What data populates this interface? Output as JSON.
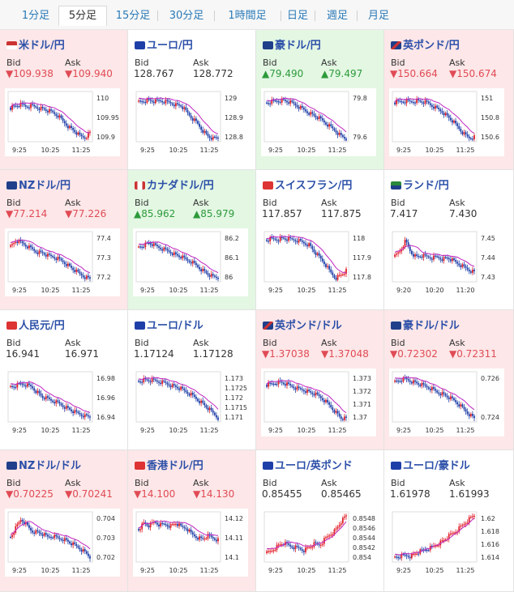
{
  "tabs": [
    {
      "label": "1分足",
      "active": false
    },
    {
      "label": "5分足",
      "active": true
    },
    {
      "label": "15分足",
      "active": false
    },
    {
      "label": "30分足",
      "active": false
    },
    {
      "label": "1時間足",
      "active": false
    },
    {
      "label": "日足",
      "active": false
    },
    {
      "label": "週足",
      "active": false
    },
    {
      "label": "月足",
      "active": false
    }
  ],
  "labels": {
    "bid": "Bid",
    "ask": "Ask"
  },
  "colors": {
    "down_bg": "#fde7e8",
    "up_bg": "#e3f7e3",
    "down_text": "#e04b55",
    "up_text": "#2d9a3b",
    "title": "#2b4fa8",
    "ma_line": "#c026c0",
    "bull": "#e0202a",
    "bear": "#1f3fa8"
  },
  "pairs": [
    {
      "name": "米ドル/円",
      "flag": "us-flag",
      "trend": "down",
      "bid": "▼109.938",
      "ask": "▼109.940",
      "chart_data": {
        "type": "candlestick",
        "xticks": [
          "9:25",
          "10:25",
          "11:25"
        ],
        "yticks": [
          "110",
          "109.95",
          "109.9"
        ],
        "shape": [
          0.68,
          0.72,
          0.74,
          0.7,
          0.72,
          0.69,
          0.66,
          0.62,
          0.58,
          0.52,
          0.4,
          0.3,
          0.22,
          0.12,
          0.08,
          0.18
        ]
      }
    },
    {
      "name": "ユーロ/円",
      "flag": "eu-flag",
      "trend": "none",
      "bid": "128.767",
      "ask": "128.772",
      "chart_data": {
        "type": "candlestick",
        "xticks": [
          "9:25",
          "10:25",
          "11:25"
        ],
        "yticks": [
          "129",
          "128.9",
          "128.8"
        ],
        "shape": [
          0.8,
          0.82,
          0.83,
          0.8,
          0.82,
          0.8,
          0.78,
          0.74,
          0.72,
          0.6,
          0.48,
          0.38,
          0.24,
          0.12,
          0.06,
          0.08
        ]
      }
    },
    {
      "name": "豪ドル/円",
      "flag": "au-flag",
      "trend": "up",
      "bid": "▲79.490",
      "ask": "▲79.497",
      "chart_data": {
        "type": "candlestick",
        "xticks": [
          "9:25",
          "10:25",
          "11:25"
        ],
        "yticks": [
          "79.8",
          "79.6"
        ],
        "shape": [
          0.78,
          0.8,
          0.82,
          0.83,
          0.8,
          0.76,
          0.7,
          0.64,
          0.58,
          0.52,
          0.46,
          0.38,
          0.3,
          0.22,
          0.12,
          0.06
        ]
      }
    },
    {
      "name": "英ポンド/円",
      "flag": "gb-flag",
      "trend": "down",
      "bid": "▼150.664",
      "ask": "▼150.674",
      "chart_data": {
        "type": "candlestick",
        "xticks": [
          "9:25",
          "10:25",
          "11:25"
        ],
        "yticks": [
          "151",
          "150.8",
          "150.6"
        ],
        "shape": [
          0.78,
          0.8,
          0.81,
          0.8,
          0.82,
          0.8,
          0.78,
          0.72,
          0.66,
          0.6,
          0.5,
          0.4,
          0.28,
          0.16,
          0.08,
          0.1
        ]
      }
    },
    {
      "name": "NZドル/円",
      "flag": "nz-flag",
      "trend": "down",
      "bid": "▼77.214",
      "ask": "▼77.226",
      "chart_data": {
        "type": "candlestick",
        "xticks": [
          "9:25",
          "10:25",
          "11:25"
        ],
        "yticks": [
          "77.4",
          "77.3",
          "77.2"
        ],
        "shape": [
          0.7,
          0.82,
          0.78,
          0.72,
          0.66,
          0.6,
          0.58,
          0.52,
          0.5,
          0.46,
          0.4,
          0.32,
          0.24,
          0.16,
          0.1,
          0.06
        ]
      }
    },
    {
      "name": "カナダドル/円",
      "flag": "ca-flag",
      "trend": "up",
      "bid": "▲85.962",
      "ask": "▲85.979",
      "chart_data": {
        "type": "candlestick",
        "xticks": [
          "9:25",
          "10:25",
          "11:25"
        ],
        "yticks": [
          "86.2",
          "86.1",
          "86"
        ],
        "shape": [
          0.7,
          0.74,
          0.78,
          0.72,
          0.68,
          0.64,
          0.6,
          0.54,
          0.5,
          0.44,
          0.4,
          0.32,
          0.24,
          0.16,
          0.1,
          0.08
        ]
      }
    },
    {
      "name": "スイスフラン/円",
      "flag": "ch-flag",
      "trend": "none",
      "bid": "117.857",
      "ask": "117.875",
      "chart_data": {
        "type": "candlestick",
        "xticks": [
          "9:25",
          "10:25",
          "11:25"
        ],
        "yticks": [
          "118",
          "117.9",
          "117.8"
        ],
        "shape": [
          0.84,
          0.86,
          0.85,
          0.87,
          0.85,
          0.84,
          0.82,
          0.78,
          0.74,
          0.6,
          0.48,
          0.36,
          0.2,
          0.08,
          0.14,
          0.22
        ]
      }
    },
    {
      "name": "ランド/円",
      "flag": "za-flag",
      "trend": "none",
      "bid": "7.417",
      "ask": "7.430",
      "chart_data": {
        "type": "candlestick",
        "xticks": [
          "9:20",
          "10:20",
          "11:20"
        ],
        "yticks": [
          "7.45",
          "7.44",
          "7.43"
        ],
        "shape": [
          0.5,
          0.62,
          0.82,
          0.6,
          0.5,
          0.52,
          0.5,
          0.48,
          0.5,
          0.46,
          0.48,
          0.42,
          0.36,
          0.3,
          0.24,
          0.2
        ]
      }
    },
    {
      "name": "人民元/円",
      "flag": "cn-flag",
      "trend": "none",
      "bid": "16.941",
      "ask": "16.971",
      "chart_data": {
        "type": "candlestick",
        "xticks": [
          "9:25",
          "10:25",
          "11:25"
        ],
        "yticks": [
          "16.98",
          "16.96",
          "16.94"
        ],
        "shape": [
          0.7,
          0.72,
          0.76,
          0.74,
          0.7,
          0.6,
          0.5,
          0.46,
          0.42,
          0.38,
          0.32,
          0.26,
          0.2,
          0.16,
          0.12,
          0.1
        ]
      }
    },
    {
      "name": "ユーロ/ドル",
      "flag": "eu-us-flag",
      "trend": "none",
      "bid": "1.17124",
      "ask": "1.17128",
      "chart_data": {
        "type": "candlestick",
        "xticks": [
          "9:25",
          "10:25",
          "11:25"
        ],
        "yticks": [
          "1.173",
          "1.1725",
          "1.172",
          "1.1715",
          "1.171"
        ],
        "shape": [
          0.82,
          0.84,
          0.83,
          0.82,
          0.8,
          0.78,
          0.74,
          0.7,
          0.66,
          0.6,
          0.54,
          0.46,
          0.38,
          0.28,
          0.18,
          0.08
        ]
      }
    },
    {
      "name": "英ポンド/ドル",
      "flag": "gb-us-flag",
      "trend": "down",
      "bid": "▼1.37038",
      "ask": "▼1.37048",
      "chart_data": {
        "type": "candlestick",
        "xticks": [
          "9:25",
          "10:25",
          "11:25"
        ],
        "yticks": [
          "1.373",
          "1.372",
          "1.371",
          "1.37"
        ],
        "shape": [
          0.74,
          0.76,
          0.8,
          0.78,
          0.74,
          0.7,
          0.66,
          0.64,
          0.6,
          0.56,
          0.5,
          0.42,
          0.32,
          0.2,
          0.08,
          0.06
        ]
      }
    },
    {
      "name": "豪ドル/ドル",
      "flag": "au-us-flag",
      "trend": "down",
      "bid": "▼0.72302",
      "ask": "▼0.72311",
      "chart_data": {
        "type": "candlestick",
        "xticks": [
          "9:25",
          "10:25",
          "11:25"
        ],
        "yticks": [
          "0.726",
          "0.724"
        ],
        "shape": [
          0.8,
          0.84,
          0.86,
          0.82,
          0.78,
          0.74,
          0.7,
          0.66,
          0.6,
          0.56,
          0.5,
          0.44,
          0.36,
          0.26,
          0.16,
          0.08
        ]
      }
    },
    {
      "name": "NZドル/ドル",
      "flag": "nz-us-flag",
      "trend": "down",
      "bid": "▼0.70225",
      "ask": "▼0.70241",
      "chart_data": {
        "type": "candlestick",
        "xticks": [
          "9:25",
          "10:25",
          "11:25"
        ],
        "yticks": [
          "0.704",
          "0.703",
          "0.702"
        ],
        "shape": [
          0.5,
          0.68,
          0.86,
          0.74,
          0.62,
          0.6,
          0.56,
          0.5,
          0.52,
          0.48,
          0.46,
          0.4,
          0.34,
          0.28,
          0.2,
          0.1
        ]
      }
    },
    {
      "name": "香港ドル/円",
      "flag": "hk-flag",
      "trend": "down",
      "bid": "▼14.100",
      "ask": "▼14.130",
      "chart_data": {
        "type": "candlestick",
        "xticks": [
          "9:25",
          "10:25",
          "11:25"
        ],
        "yticks": [
          "14.12",
          "14.11",
          "14.1"
        ],
        "shape": [
          0.66,
          0.78,
          0.72,
          0.8,
          0.74,
          0.76,
          0.72,
          0.78,
          0.7,
          0.68,
          0.56,
          0.5,
          0.46,
          0.52,
          0.48,
          0.44
        ]
      }
    },
    {
      "name": "ユーロ/英ポンド",
      "flag": "eu-gb-flag",
      "trend": "none",
      "bid": "0.85455",
      "ask": "0.85465",
      "chart_data": {
        "type": "candlestick",
        "xticks": [
          "9:25",
          "10:25",
          "11:25"
        ],
        "yticks": [
          "0.8548",
          "0.8546",
          "0.8544",
          "0.8542",
          "0.854"
        ],
        "shape": [
          0.18,
          0.24,
          0.32,
          0.38,
          0.34,
          0.3,
          0.28,
          0.24,
          0.3,
          0.36,
          0.34,
          0.46,
          0.56,
          0.64,
          0.8,
          0.92
        ]
      }
    },
    {
      "name": "ユーロ/豪ドル",
      "flag": "eu-au-flag",
      "trend": "none",
      "bid": "1.61978",
      "ask": "1.61993",
      "chart_data": {
        "type": "candlestick",
        "xticks": [
          "9:25",
          "10:25",
          "11:25"
        ],
        "yticks": [
          "1.62",
          "1.618",
          "1.616",
          "1.614"
        ],
        "shape": [
          0.1,
          0.12,
          0.14,
          0.12,
          0.18,
          0.22,
          0.26,
          0.3,
          0.36,
          0.42,
          0.5,
          0.58,
          0.66,
          0.76,
          0.86,
          0.94
        ]
      }
    }
  ]
}
